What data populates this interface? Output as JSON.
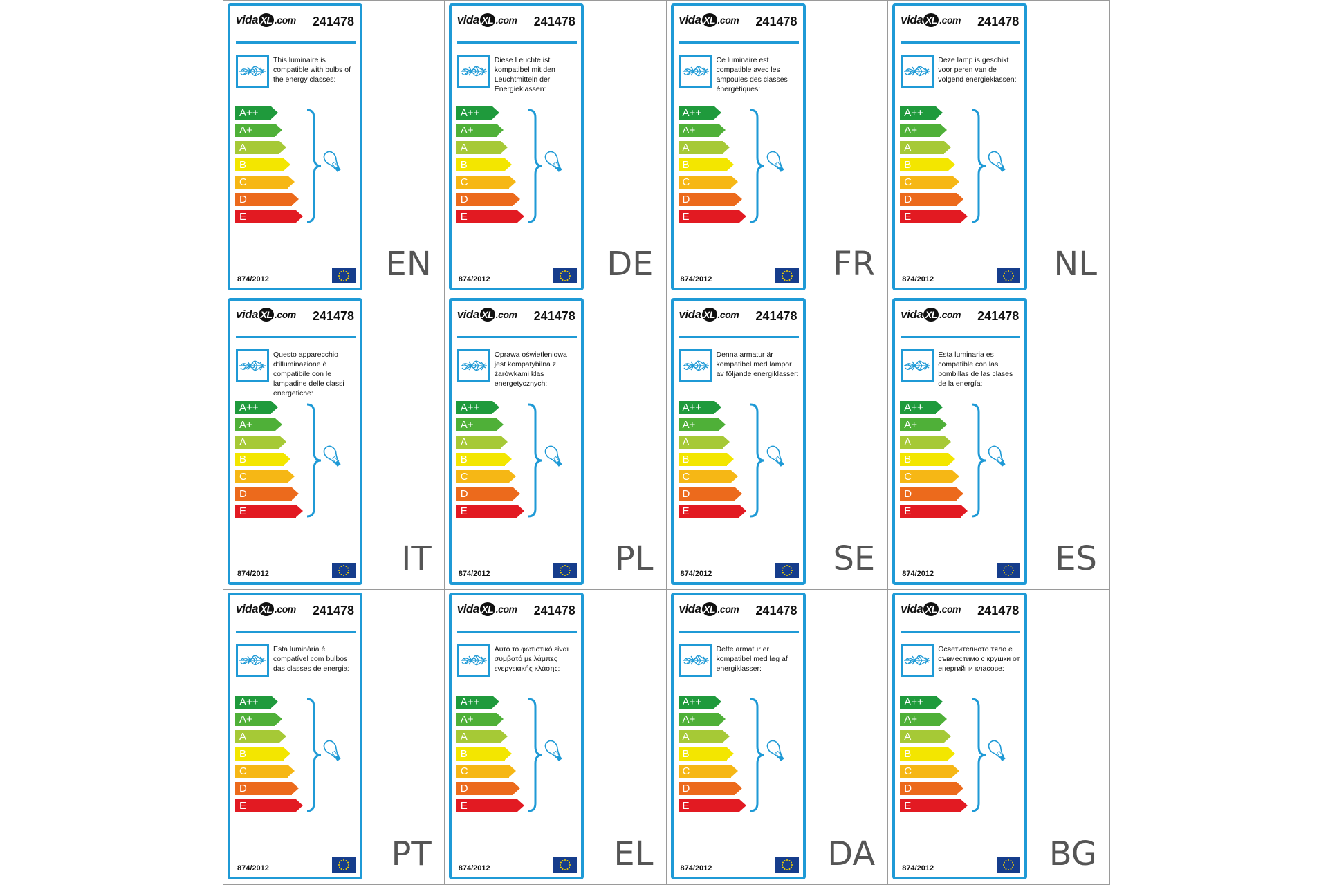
{
  "brand": {
    "prefix": "vida",
    "xl": "XL",
    "domain": ".com"
  },
  "product_code": "241478",
  "regulation": "874/2012",
  "classes": [
    {
      "label": "A++",
      "color": "#1f9a3c",
      "width": 52
    },
    {
      "label": "A+",
      "color": "#4fb038",
      "width": 58
    },
    {
      "label": "A",
      "color": "#a6c936",
      "width": 64
    },
    {
      "label": "B",
      "color": "#f3e600",
      "width": 70
    },
    {
      "label": "C",
      "color": "#f6b715",
      "width": 76
    },
    {
      "label": "D",
      "color": "#ec6a1c",
      "width": 82
    },
    {
      "label": "E",
      "color": "#e21a22",
      "width": 88
    }
  ],
  "labels": [
    {
      "lang": "EN",
      "text": "This luminaire is compatible with bulbs of the energy classes:"
    },
    {
      "lang": "DE",
      "text": "Diese Leuchte ist kompatibel mit den Leuchtmitteln der Energieklassen:"
    },
    {
      "lang": "FR",
      "text": "Ce luminaire est compatible avec les ampoules des classes énergétiques:"
    },
    {
      "lang": "NL",
      "text": "Deze lamp is geschikt voor peren van de volgend energieklassen:"
    },
    {
      "lang": "IT",
      "text": "Questo apparecchio d'illuminazione è compatibile con le lampadine delle classi energetiche:"
    },
    {
      "lang": "PL",
      "text": "Oprawa oświetleniowa jest kompatybilna z żarówkami klas energetycznych:"
    },
    {
      "lang": "SE",
      "text": "Denna armatur är kompatibel med lampor av följande energiklasser:"
    },
    {
      "lang": "ES",
      "text": "Esta luminaria es compatible con las bombillas de las clases de la energía:"
    },
    {
      "lang": "PT",
      "text": "Esta luminária é compatível com bulbos das classes de energia:"
    },
    {
      "lang": "EL",
      "text": "Αυτό το φωτιστικό είναι συμβατό με λάμπες ενεργειακής κλάσης:"
    },
    {
      "lang": "DA",
      "text": "Dette armatur er kompatibel med løg af energiklasser:"
    },
    {
      "lang": "BG",
      "text": "Осветителното тяло е съвместимо с крушки от енергийни класове:"
    }
  ]
}
